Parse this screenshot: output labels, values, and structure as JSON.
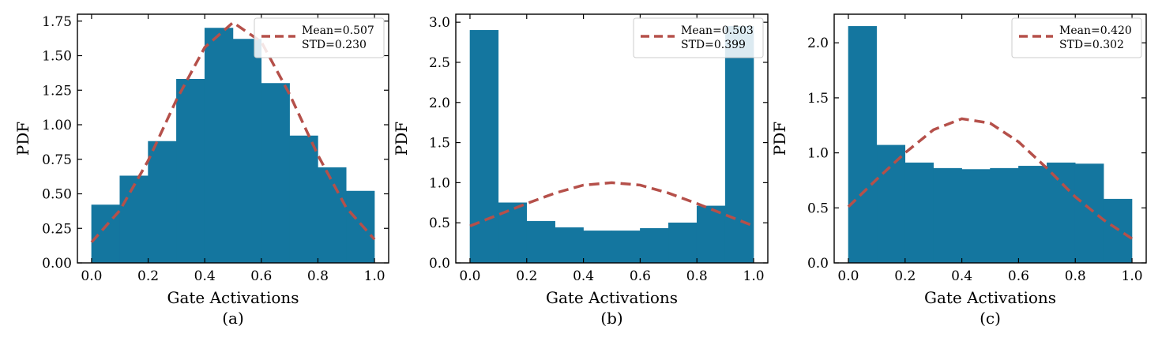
{
  "colors": {
    "bar": "#14769f",
    "curve": "#b5504a",
    "axis": "#000000",
    "legend_border": "#cccccc"
  },
  "chart_data": [
    {
      "type": "bar",
      "caption": "(a)",
      "xlabel": "Gate Activations",
      "ylabel": "PDF",
      "xlim": [
        -0.05,
        1.05
      ],
      "ylim": [
        0,
        1.8
      ],
      "xticks": [
        0.0,
        0.2,
        0.4,
        0.6,
        0.8,
        1.0
      ],
      "xtick_labels": [
        "0.0",
        "0.2",
        "0.4",
        "0.6",
        "0.8",
        "1.0"
      ],
      "yticks": [
        0.0,
        0.25,
        0.5,
        0.75,
        1.0,
        1.25,
        1.5,
        1.75
      ],
      "ytick_labels": [
        "0.00",
        "0.25",
        "0.50",
        "0.75",
        "1.00",
        "1.25",
        "1.50",
        "1.75"
      ],
      "bin_edges": [
        0.0,
        0.1,
        0.2,
        0.3,
        0.4,
        0.5,
        0.6,
        0.7,
        0.8,
        0.9,
        1.0
      ],
      "values": [
        0.42,
        0.63,
        0.88,
        1.33,
        1.7,
        1.62,
        1.3,
        0.92,
        0.69,
        0.52
      ],
      "curve_x": [
        0.0,
        0.1,
        0.2,
        0.3,
        0.4,
        0.5,
        0.6,
        0.7,
        0.8,
        0.9,
        1.0
      ],
      "curve_y": [
        0.15,
        0.38,
        0.74,
        1.18,
        1.56,
        1.74,
        1.6,
        1.22,
        0.78,
        0.4,
        0.17
      ],
      "legend": {
        "line1": "Mean=0.507",
        "line2": "STD=0.230",
        "position": "top-right"
      }
    },
    {
      "type": "bar",
      "caption": "(b)",
      "xlabel": "Gate Activations",
      "ylabel": "PDF",
      "xlim": [
        -0.05,
        1.05
      ],
      "ylim": [
        0,
        3.1
      ],
      "xticks": [
        0.0,
        0.2,
        0.4,
        0.6,
        0.8,
        1.0
      ],
      "xtick_labels": [
        "0.0",
        "0.2",
        "0.4",
        "0.6",
        "0.8",
        "1.0"
      ],
      "yticks": [
        0.0,
        0.5,
        1.0,
        1.5,
        2.0,
        2.5,
        3.0
      ],
      "ytick_labels": [
        "0.0",
        "0.5",
        "1.0",
        "1.5",
        "2.0",
        "2.5",
        "3.0"
      ],
      "bin_edges": [
        0.0,
        0.1,
        0.2,
        0.3,
        0.4,
        0.5,
        0.6,
        0.7,
        0.8,
        0.9,
        1.0
      ],
      "values": [
        2.9,
        0.75,
        0.52,
        0.44,
        0.4,
        0.4,
        0.43,
        0.5,
        0.71,
        2.95
      ],
      "curve_x": [
        0.0,
        0.1,
        0.2,
        0.3,
        0.4,
        0.5,
        0.6,
        0.7,
        0.8,
        0.9,
        1.0
      ],
      "curve_y": [
        0.46,
        0.6,
        0.74,
        0.87,
        0.97,
        1.0,
        0.97,
        0.87,
        0.74,
        0.6,
        0.46
      ],
      "legend": {
        "line1": "Mean=0.503",
        "line2": "STD=0.399",
        "position": "top-right"
      }
    },
    {
      "type": "bar",
      "caption": "(c)",
      "xlabel": "Gate Activations",
      "ylabel": "PDF",
      "xlim": [
        -0.05,
        1.05
      ],
      "ylim": [
        0,
        2.26
      ],
      "xticks": [
        0.0,
        0.2,
        0.4,
        0.6,
        0.8,
        1.0
      ],
      "xtick_labels": [
        "0.0",
        "0.2",
        "0.4",
        "0.6",
        "0.8",
        "1.0"
      ],
      "yticks": [
        0.0,
        0.5,
        1.0,
        1.5,
        2.0
      ],
      "ytick_labels": [
        "0.0",
        "0.5",
        "1.0",
        "1.5",
        "2.0"
      ],
      "bin_edges": [
        0.0,
        0.1,
        0.2,
        0.3,
        0.4,
        0.5,
        0.6,
        0.7,
        0.8,
        0.9,
        1.0
      ],
      "values": [
        2.15,
        1.07,
        0.91,
        0.86,
        0.85,
        0.86,
        0.88,
        0.91,
        0.9,
        0.58
      ],
      "curve_x": [
        0.0,
        0.1,
        0.2,
        0.3,
        0.4,
        0.5,
        0.6,
        0.7,
        0.8,
        0.9,
        1.0
      ],
      "curve_y": [
        0.51,
        0.76,
        1.0,
        1.21,
        1.31,
        1.27,
        1.1,
        0.86,
        0.6,
        0.39,
        0.22
      ],
      "legend": {
        "line1": "Mean=0.420",
        "line2": "STD=0.302",
        "position": "top-right"
      }
    }
  ]
}
